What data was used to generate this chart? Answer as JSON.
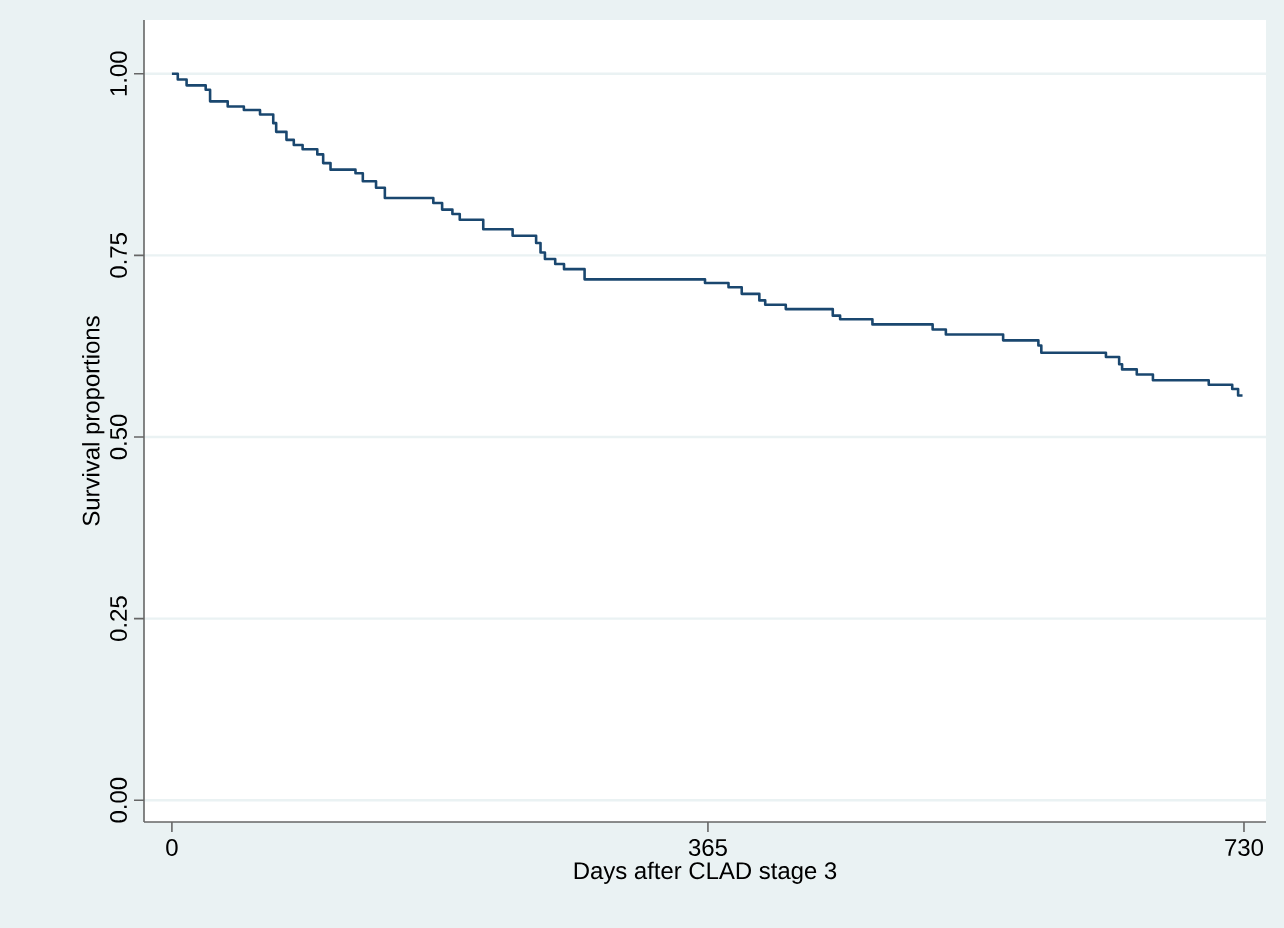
{
  "chart_data": {
    "type": "step",
    "xlabel": "Days after CLAD stage 3",
    "ylabel": "Survival proportions",
    "x": [
      0,
      4,
      10,
      23,
      26,
      38,
      49,
      60,
      69,
      71,
      78,
      83,
      89,
      99,
      103,
      108,
      125,
      130,
      139,
      145,
      178,
      184,
      191,
      196,
      212,
      232,
      248,
      251,
      254,
      261,
      267,
      281,
      363,
      379,
      388,
      400,
      404,
      418,
      450,
      455,
      477,
      518,
      527,
      566,
      590,
      592,
      636,
      645,
      647,
      657,
      668,
      706,
      722,
      726,
      729
    ],
    "series": [
      {
        "color": "#1a476f",
        "values": [
          1.0,
          0.992,
          0.984,
          0.978,
          0.962,
          0.955,
          0.95,
          0.944,
          0.932,
          0.92,
          0.909,
          0.902,
          0.896,
          0.889,
          0.877,
          0.868,
          0.863,
          0.852,
          0.843,
          0.829,
          0.822,
          0.813,
          0.807,
          0.799,
          0.786,
          0.777,
          0.767,
          0.754,
          0.745,
          0.738,
          0.731,
          0.717,
          0.712,
          0.706,
          0.697,
          0.688,
          0.682,
          0.676,
          0.667,
          0.662,
          0.655,
          0.648,
          0.641,
          0.633,
          0.626,
          0.616,
          0.61,
          0.6,
          0.593,
          0.586,
          0.578,
          0.572,
          0.566,
          0.557,
          0.557
        ]
      }
    ],
    "xlim": [
      -19,
      745
    ],
    "ylim": [
      -0.03,
      1.074
    ],
    "xticks": [
      0,
      365,
      730
    ],
    "yticks": [
      {
        "value": 0,
        "label": "0.00"
      },
      {
        "value": 0.25,
        "label": "0.25"
      },
      {
        "value": 0.5,
        "label": "0.50"
      },
      {
        "value": 0.75,
        "label": "0.75"
      },
      {
        "value": 1,
        "label": "1.00"
      }
    ],
    "grid": "y"
  }
}
